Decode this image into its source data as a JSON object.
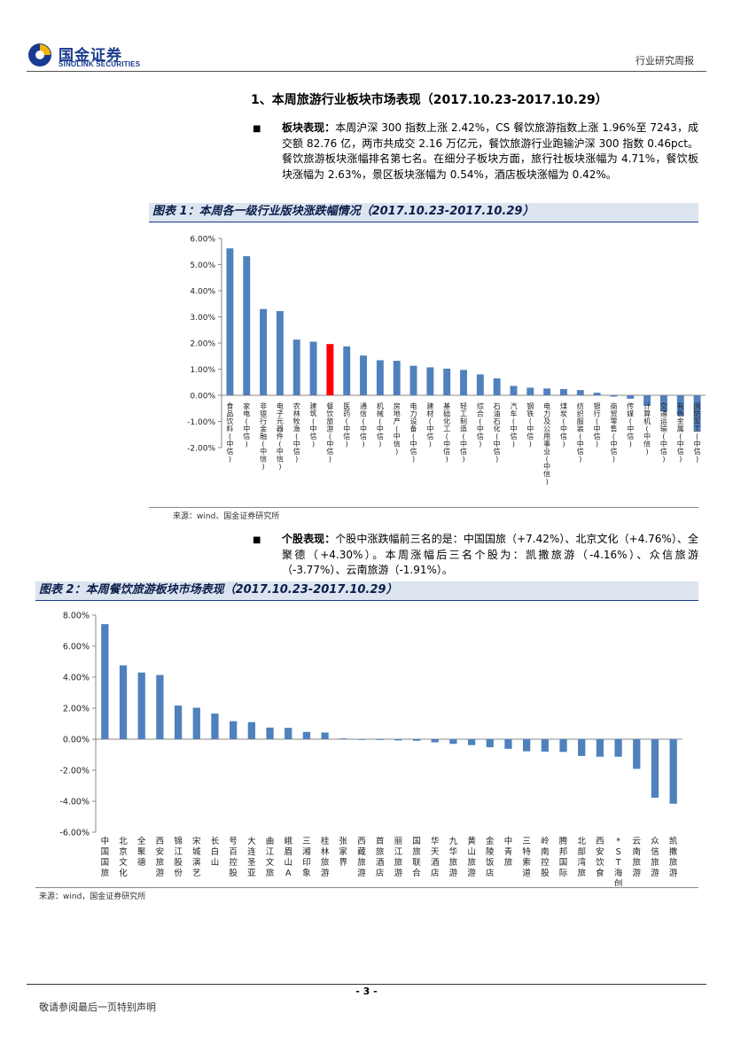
{
  "header": {
    "logo_cn": "国金证券",
    "logo_en": "SINOLINK SECURITIES",
    "report_type": "行业研究周报"
  },
  "section_title": "1、本周旅游行业板块市场表现（2017.10.23-2017.10.29）",
  "para1": {
    "label": "板块表现：",
    "text": "本周沪深 300 指数上涨 2.42%，CS 餐饮旅游指数上涨 1.96%至 7243，成交额 82.76 亿，两市共成交 2.16 万亿元，餐饮旅游行业跑输沪深 300 指数 0.46pct。餐饮旅游板块涨幅排名第七名。在细分子板块方面，旅行社板块涨幅为 4.71%，餐饮板块涨幅为 2.63%，景区板块涨幅为 0.54%，酒店板块涨幅为 0.42%。"
  },
  "para2": {
    "label": "个股表现：",
    "text": "个股中涨跌幅前三名的是：中国国旅（+7.42%）、北京文化（+4.76%）、全聚德（+4.30%）。本周涨幅后三名个股为：凯撒旅游（-4.16%）、众信旅游（-3.77%）、云南旅游（-1.91%）。"
  },
  "fig1": {
    "title": "图表 1：本周各一级行业版块涨跌幅情况（2017.10.23-2017.10.29）",
    "source": "来源：wind、国金证券研究所"
  },
  "fig2": {
    "title": "图表 2：本周餐饮旅游板块市场表现（2017.10.23-2017.10.29）",
    "source": "来源：wind，国金证券研究所"
  },
  "chart_data": [
    {
      "type": "bar",
      "ylim": [
        -2,
        6
      ],
      "yticks": [
        "-2.00%",
        "-1.00%",
        "0.00%",
        "1.00%",
        "2.00%",
        "3.00%",
        "4.00%",
        "5.00%",
        "6.00%"
      ],
      "bar_color": "#4f81bd",
      "highlight_color": "#ff0000",
      "highlight_category": "餐饮旅游(中信)",
      "categories": [
        "食品饮料(中信)",
        "家电(中信)",
        "非银行金融(中信)",
        "电子元器件(中信)",
        "农林牧渔(中信)",
        "建筑(中信)",
        "餐饮旅游(中信)",
        "医药(中信)",
        "通信(中信)",
        "机械(中信)",
        "房地产(中信)",
        "电力设备(中信)",
        "建材(中信)",
        "基础化工(中信)",
        "轻工制造(中信)",
        "综合(中信)",
        "石油石化(中信)",
        "汽车(中信)",
        "钢铁(中信)",
        "电力及公用事业(中信)",
        "煤炭(中信)",
        "纺织服装(中信)",
        "银行(中信)",
        "商贸零售(中信)",
        "传媒(中信)",
        "计算机(中信)",
        "交通运输(中信)",
        "有色金属(中信)",
        "国防军工(中信)"
      ],
      "values": [
        5.62,
        5.32,
        3.3,
        3.22,
        2.13,
        2.05,
        1.96,
        1.87,
        1.52,
        1.34,
        1.32,
        1.13,
        1.07,
        1.02,
        0.97,
        0.8,
        0.65,
        0.36,
        0.29,
        0.26,
        0.24,
        0.2,
        0.1,
        -0.05,
        -0.13,
        -0.4,
        -0.62,
        -0.78,
        -1.38
      ]
    },
    {
      "type": "bar",
      "ylim": [
        -6,
        8
      ],
      "yticks": [
        "-6.00%",
        "-4.00%",
        "-2.00%",
        "0.00%",
        "2.00%",
        "4.00%",
        "6.00%",
        "8.00%"
      ],
      "bar_color": "#4f81bd",
      "categories": [
        "中国国旅",
        "北京文化",
        "全聚德",
        "西安旅游",
        "锦江股份",
        "宋城演艺",
        "长白山",
        "号百控股",
        "大连圣亚",
        "曲江文旅",
        "峨眉山A",
        "三湘印象",
        "桂林旅游",
        "张家界",
        "西藏旅游",
        "首旅酒店",
        "丽江旅游",
        "国旅联合",
        "华天酒店",
        "九华旅游",
        "黄山旅游",
        "金陵饭店",
        "中青旅",
        "三特索道",
        "岭南控股",
        "腾邦国际",
        "北部湾旅",
        "西安饮食",
        "*ST海创A",
        "云南旅游",
        "众信旅游",
        "凯撒旅游"
      ],
      "values": [
        7.42,
        4.76,
        4.3,
        4.14,
        2.17,
        2.03,
        1.65,
        1.16,
        1.1,
        0.75,
        0.73,
        0.47,
        0.43,
        0.05,
        -0.03,
        -0.05,
        -0.08,
        -0.1,
        -0.2,
        -0.3,
        -0.38,
        -0.52,
        -0.62,
        -0.78,
        -0.8,
        -0.82,
        -1.08,
        -1.13,
        -1.13,
        -1.91,
        -3.77,
        -4.16
      ]
    }
  ]
}
